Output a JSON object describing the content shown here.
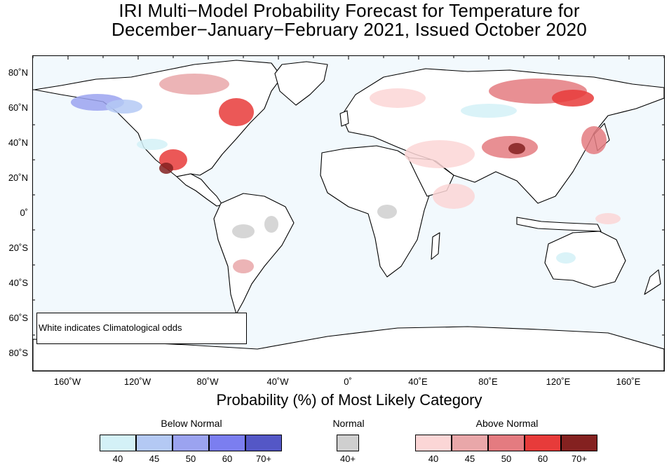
{
  "title_line1": "IRI Multi−Model Probability Forecast for Temperature for",
  "title_line2": "December−January−February 2021, Issued October 2020",
  "xlabel": "Probability (%) of Most Likely Category",
  "note": "White indicates Climatological odds",
  "lat_labels": [
    "80˚N",
    "60˚N",
    "40˚N",
    "20˚N",
    "0˚",
    "20˚S",
    "40˚S",
    "60˚S",
    "80˚S"
  ],
  "lon_labels": [
    "160˚W",
    "120˚W",
    "80˚W",
    "40˚W",
    "0˚",
    "40˚E",
    "80˚E",
    "120˚E",
    "160˚E"
  ],
  "legend": {
    "below": {
      "title": "Below Normal",
      "labels": [
        "40",
        "45",
        "50",
        "60",
        "70+"
      ],
      "colors": [
        "#d4f1f7",
        "#b4c9f4",
        "#9ba3f0",
        "#7b7ef0",
        "#5457c6"
      ]
    },
    "normal": {
      "title": "Normal",
      "labels": [
        "40+"
      ],
      "colors": [
        "#cfcfcf"
      ]
    },
    "above": {
      "title": "Above Normal",
      "labels": [
        "40",
        "45",
        "50",
        "60",
        "70+"
      ],
      "colors": [
        "#fbd6d6",
        "#e9a7a9",
        "#e47b80",
        "#e73b3a",
        "#842120"
      ]
    }
  },
  "colors": {
    "ocean": "#f2f9fd",
    "land": "#ffffff"
  }
}
